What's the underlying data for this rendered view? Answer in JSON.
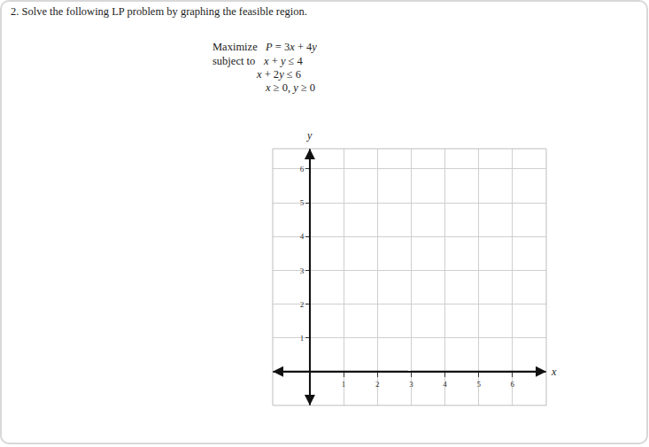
{
  "problem": {
    "heading": "2. Solve the following LP problem by graphing the feasible region.",
    "objective_label": "Maximize",
    "objective": "P = 3x + 4y",
    "constraints_label": "subject to",
    "constraints": [
      "x + y ≤ 4",
      "x + 2y ≤ 6",
      "x ≥ 0, y ≥ 0"
    ]
  },
  "chart_data": {
    "type": "scatter",
    "x_label": "x",
    "y_label": "y",
    "xlim": [
      -1.1,
      7
    ],
    "ylim": [
      -1,
      6.6
    ],
    "xticks": [
      1,
      2,
      3,
      4,
      5,
      6
    ],
    "yticks": [
      1,
      2,
      3,
      4,
      5,
      6
    ],
    "grid": true
  }
}
